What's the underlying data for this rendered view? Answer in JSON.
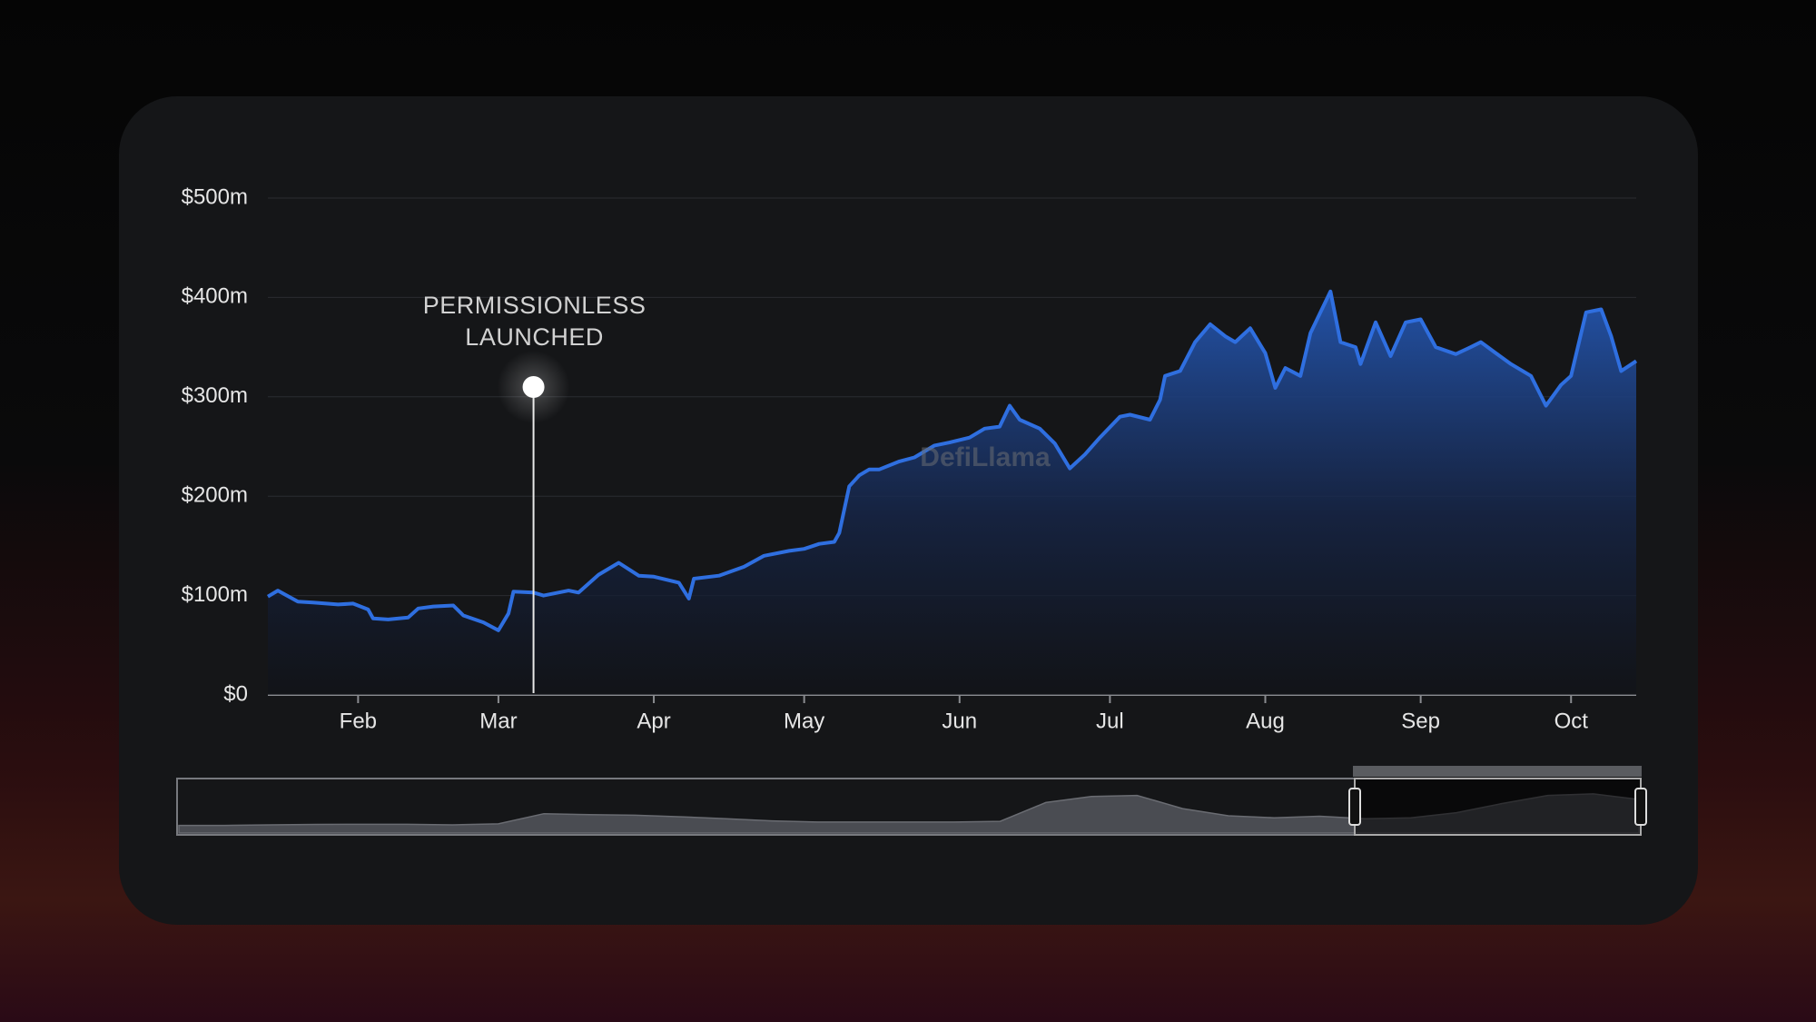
{
  "chart_data": {
    "type": "area",
    "x": [
      -18,
      -16,
      -12,
      -9,
      -4,
      -1,
      2,
      3,
      6,
      10,
      12,
      15,
      19,
      21,
      25,
      28,
      30,
      31,
      35,
      37,
      42,
      44,
      48,
      52,
      56,
      59,
      64,
      66,
      67,
      72,
      77,
      81,
      86,
      89,
      92,
      95,
      96,
      98,
      100,
      102,
      104,
      108,
      111,
      115,
      118,
      122,
      125,
      128,
      130,
      132,
      136,
      139,
      142,
      145,
      148,
      152,
      154,
      158,
      160,
      161,
      164,
      167,
      170,
      173,
      175,
      178,
      181,
      183,
      185,
      188,
      190,
      194,
      196,
      199,
      200,
      203,
      206,
      209,
      212,
      215,
      219,
      222,
      224,
      227,
      230,
      234,
      237,
      240,
      242,
      245,
      248,
      250,
      252,
      255
    ],
    "values": [
      99,
      105,
      94,
      93,
      91,
      92,
      86,
      77,
      76,
      78,
      87,
      89,
      90,
      80,
      73,
      65,
      82,
      104,
      103,
      100,
      105,
      103,
      121,
      133,
      120,
      119,
      113,
      97,
      117,
      120,
      129,
      140,
      145,
      147,
      152,
      154,
      163,
      210,
      221,
      227,
      227,
      235,
      239,
      251,
      254,
      259,
      268,
      270,
      291,
      277,
      268,
      253,
      228,
      242,
      259,
      280,
      282,
      277,
      297,
      321,
      326,
      355,
      373,
      361,
      355,
      369,
      344,
      309,
      329,
      321,
      364,
      406,
      355,
      350,
      333,
      375,
      341,
      375,
      378,
      350,
      343,
      350,
      355,
      344,
      333,
      321,
      291,
      312,
      321,
      385,
      388,
      361,
      326,
      336
    ],
    "color": "#2f6fe0",
    "xlim": [
      -18,
      255
    ],
    "xticks": [
      {
        "value": 0,
        "label": "Feb"
      },
      {
        "value": 28,
        "label": "Mar"
      },
      {
        "value": 59,
        "label": "Apr"
      },
      {
        "value": 89,
        "label": "May"
      },
      {
        "value": 120,
        "label": "Jun"
      },
      {
        "value": 150,
        "label": "Jul"
      },
      {
        "value": 181,
        "label": "Aug"
      },
      {
        "value": 212,
        "label": "Sep"
      },
      {
        "value": 242,
        "label": "Oct"
      }
    ],
    "ylim": [
      0,
      500
    ],
    "yticks": [
      {
        "value": 0,
        "label": "$0"
      },
      {
        "value": 100,
        "label": "$100m"
      },
      {
        "value": 200,
        "label": "$200m"
      },
      {
        "value": 300,
        "label": "$300m"
      },
      {
        "value": 400,
        "label": "$400m"
      },
      {
        "value": 500,
        "label": "$500m"
      }
    ],
    "grid": true,
    "annotation": {
      "x": 35,
      "text": [
        "PERMISSIONLESS",
        "LAUNCHED"
      ]
    },
    "watermark": "DefiLlama",
    "overview": {
      "values": [
        75,
        75,
        80,
        85,
        86,
        86,
        80,
        90,
        190,
        180,
        175,
        160,
        140,
        120,
        108,
        108,
        108,
        108,
        115,
        300,
        360,
        370,
        240,
        170,
        150,
        165,
        140,
        150,
        200,
        290,
        370,
        385,
        330
      ]
    }
  }
}
